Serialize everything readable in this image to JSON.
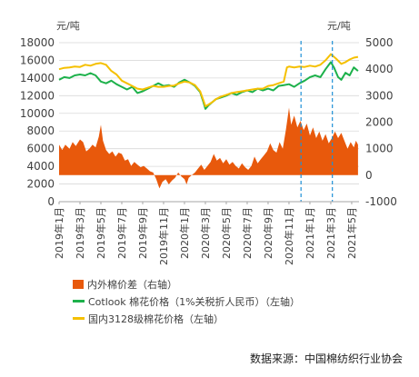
{
  "chart_data": {
    "type": "bar+line",
    "left_axis_unit": "元/吨",
    "right_axis_unit": "元/吨",
    "left_ylim": [
      0,
      18000
    ],
    "right_ylim": [
      -1000,
      5000
    ],
    "left_ticks": [
      "0",
      "2000",
      "4000",
      "6000",
      "8000",
      "10000",
      "12000",
      "14000",
      "16000",
      "18000"
    ],
    "right_ticks": [
      "-1000",
      "0",
      "1000",
      "2000",
      "3000",
      "4000",
      "5000"
    ],
    "x_labels": [
      "2019年1月",
      "2019年3月",
      "2019年5月",
      "2019年7月",
      "2019年9月",
      "2019年11月",
      "2020年1月",
      "2020年3月",
      "2020年5月",
      "2020年7月",
      "2020年9月",
      "2020年11月",
      "2021年1月",
      "2021年3月",
      "2021年5月"
    ],
    "x_months": [
      0,
      2,
      4,
      6,
      8,
      10,
      12,
      14,
      16,
      18,
      20,
      22,
      24,
      26,
      28
    ],
    "x_range_months": [
      0,
      28.7
    ],
    "reference_lines_months": [
      23.15,
      26.15
    ],
    "series": [
      {
        "name": "内外棉价差（右轴）",
        "type": "area",
        "axis": "right",
        "color": "#E8590C",
        "points": [
          [
            0,
            1150
          ],
          [
            0.3,
            950
          ],
          [
            0.6,
            1150
          ],
          [
            1,
            1000
          ],
          [
            1.3,
            1250
          ],
          [
            1.6,
            1100
          ],
          [
            2,
            1350
          ],
          [
            2.3,
            1250
          ],
          [
            2.6,
            900
          ],
          [
            2.9,
            1000
          ],
          [
            3.2,
            1150
          ],
          [
            3.5,
            1050
          ],
          [
            3.8,
            1450
          ],
          [
            4,
            1900
          ],
          [
            4.2,
            1300
          ],
          [
            4.5,
            950
          ],
          [
            4.8,
            800
          ],
          [
            5.1,
            900
          ],
          [
            5.4,
            700
          ],
          [
            5.7,
            850
          ],
          [
            6,
            800
          ],
          [
            6.3,
            550
          ],
          [
            6.6,
            600
          ],
          [
            6.9,
            350
          ],
          [
            7.2,
            500
          ],
          [
            7.5,
            400
          ],
          [
            7.8,
            300
          ],
          [
            8.1,
            350
          ],
          [
            8.4,
            250
          ],
          [
            8.7,
            150
          ],
          [
            9,
            100
          ],
          [
            9.3,
            -150
          ],
          [
            9.6,
            -500
          ],
          [
            9.9,
            -250
          ],
          [
            10.2,
            -150
          ],
          [
            10.5,
            -350
          ],
          [
            10.8,
            -200
          ],
          [
            11.1,
            -100
          ],
          [
            11.4,
            100
          ],
          [
            11.7,
            -50
          ],
          [
            12,
            -150
          ],
          [
            12.2,
            -350
          ],
          [
            12.4,
            -100
          ],
          [
            12.7,
            0
          ],
          [
            13,
            100
          ],
          [
            13.3,
            250
          ],
          [
            13.6,
            400
          ],
          [
            13.9,
            200
          ],
          [
            14.2,
            350
          ],
          [
            14.5,
            500
          ],
          [
            14.8,
            800
          ],
          [
            15.1,
            550
          ],
          [
            15.4,
            650
          ],
          [
            15.7,
            450
          ],
          [
            16,
            600
          ],
          [
            16.3,
            400
          ],
          [
            16.6,
            500
          ],
          [
            16.9,
            350
          ],
          [
            17.2,
            250
          ],
          [
            17.5,
            450
          ],
          [
            17.8,
            300
          ],
          [
            18.1,
            200
          ],
          [
            18.4,
            350
          ],
          [
            18.7,
            700
          ],
          [
            19,
            450
          ],
          [
            19.3,
            600
          ],
          [
            19.6,
            750
          ],
          [
            19.9,
            900
          ],
          [
            20.2,
            1200
          ],
          [
            20.5,
            950
          ],
          [
            20.8,
            850
          ],
          [
            21.1,
            1250
          ],
          [
            21.4,
            1000
          ],
          [
            21.7,
            1700
          ],
          [
            22,
            2550
          ],
          [
            22.2,
            1900
          ],
          [
            22.5,
            2250
          ],
          [
            22.8,
            1800
          ],
          [
            23.1,
            2050
          ],
          [
            23.4,
            1700
          ],
          [
            23.7,
            1950
          ],
          [
            24,
            1500
          ],
          [
            24.3,
            1800
          ],
          [
            24.6,
            1400
          ],
          [
            24.9,
            1650
          ],
          [
            25.2,
            1300
          ],
          [
            25.5,
            1550
          ],
          [
            25.8,
            1200
          ],
          [
            26.1,
            1400
          ],
          [
            26.4,
            1650
          ],
          [
            26.7,
            1400
          ],
          [
            27,
            1600
          ],
          [
            27.3,
            1300
          ],
          [
            27.6,
            1000
          ],
          [
            27.9,
            1250
          ],
          [
            28.2,
            1050
          ],
          [
            28.4,
            1300
          ],
          [
            28.6,
            1150
          ]
        ]
      },
      {
        "name": "Cotlook 棉花价格（1%关税折人民币）（左轴）",
        "type": "line",
        "axis": "left",
        "color": "#1DB14B",
        "points": [
          [
            0,
            13800
          ],
          [
            0.5,
            14100
          ],
          [
            1,
            14000
          ],
          [
            1.5,
            14300
          ],
          [
            2,
            14400
          ],
          [
            2.5,
            14300
          ],
          [
            3,
            14550
          ],
          [
            3.5,
            14300
          ],
          [
            4,
            13600
          ],
          [
            4.5,
            13400
          ],
          [
            5,
            13700
          ],
          [
            5.5,
            13300
          ],
          [
            6,
            13000
          ],
          [
            6.5,
            12700
          ],
          [
            7,
            13000
          ],
          [
            7.5,
            12300
          ],
          [
            8,
            12500
          ],
          [
            8.5,
            12800
          ],
          [
            9,
            13100
          ],
          [
            9.5,
            13400
          ],
          [
            10,
            13100
          ],
          [
            10.5,
            13200
          ],
          [
            11,
            13000
          ],
          [
            11.5,
            13500
          ],
          [
            12,
            13800
          ],
          [
            12.5,
            13500
          ],
          [
            13,
            13100
          ],
          [
            13.5,
            12400
          ],
          [
            13.8,
            11300
          ],
          [
            14,
            10500
          ],
          [
            14.3,
            10900
          ],
          [
            14.7,
            11300
          ],
          [
            15,
            11600
          ],
          [
            15.5,
            11800
          ],
          [
            16,
            12000
          ],
          [
            16.5,
            12300
          ],
          [
            17,
            12100
          ],
          [
            17.5,
            12400
          ],
          [
            18,
            12600
          ],
          [
            18.5,
            12400
          ],
          [
            19,
            12800
          ],
          [
            19.5,
            12600
          ],
          [
            20,
            12800
          ],
          [
            20.5,
            12600
          ],
          [
            21,
            13100
          ],
          [
            21.5,
            13200
          ],
          [
            22,
            13300
          ],
          [
            22.5,
            13000
          ],
          [
            23,
            13400
          ],
          [
            23.5,
            13700
          ],
          [
            24,
            14100
          ],
          [
            24.5,
            14300
          ],
          [
            25,
            14100
          ],
          [
            25.5,
            15000
          ],
          [
            26,
            15800
          ],
          [
            26.3,
            15200
          ],
          [
            26.7,
            14100
          ],
          [
            27,
            13800
          ],
          [
            27.4,
            14600
          ],
          [
            27.8,
            14300
          ],
          [
            28.2,
            15200
          ],
          [
            28.6,
            14800
          ]
        ]
      },
      {
        "name": "国内3128级棉花价格（左轴）",
        "type": "line",
        "axis": "left",
        "color": "#F5C000",
        "points": [
          [
            0,
            15000
          ],
          [
            0.5,
            15150
          ],
          [
            1,
            15200
          ],
          [
            1.5,
            15300
          ],
          [
            2,
            15250
          ],
          [
            2.5,
            15500
          ],
          [
            3,
            15400
          ],
          [
            3.5,
            15600
          ],
          [
            4,
            15700
          ],
          [
            4.5,
            15500
          ],
          [
            5,
            14800
          ],
          [
            5.5,
            14400
          ],
          [
            6,
            13700
          ],
          [
            6.5,
            13400
          ],
          [
            7,
            13100
          ],
          [
            7.5,
            12800
          ],
          [
            8,
            12700
          ],
          [
            8.5,
            12900
          ],
          [
            9,
            13100
          ],
          [
            9.5,
            13000
          ],
          [
            10,
            13000
          ],
          [
            10.5,
            13100
          ],
          [
            11,
            13150
          ],
          [
            11.5,
            13400
          ],
          [
            12,
            13600
          ],
          [
            12.5,
            13500
          ],
          [
            13,
            13200
          ],
          [
            13.5,
            12500
          ],
          [
            13.8,
            11500
          ],
          [
            14,
            10800
          ],
          [
            14.3,
            11000
          ],
          [
            14.7,
            11300
          ],
          [
            15,
            11600
          ],
          [
            15.5,
            11900
          ],
          [
            16,
            12100
          ],
          [
            16.5,
            12300
          ],
          [
            17,
            12400
          ],
          [
            17.5,
            12500
          ],
          [
            18,
            12600
          ],
          [
            18.5,
            12700
          ],
          [
            19,
            12800
          ],
          [
            19.5,
            12800
          ],
          [
            20,
            13100
          ],
          [
            20.5,
            13200
          ],
          [
            21,
            13400
          ],
          [
            21.5,
            13600
          ],
          [
            21.8,
            15200
          ],
          [
            22,
            15300
          ],
          [
            22.5,
            15200
          ],
          [
            23,
            15300
          ],
          [
            23.5,
            15250
          ],
          [
            24,
            15400
          ],
          [
            24.5,
            15300
          ],
          [
            25,
            15500
          ],
          [
            25.5,
            16000
          ],
          [
            26,
            16700
          ],
          [
            26.5,
            16200
          ],
          [
            27,
            15600
          ],
          [
            27.4,
            15800
          ],
          [
            27.8,
            16100
          ],
          [
            28.2,
            16300
          ],
          [
            28.6,
            16400
          ]
        ]
      }
    ],
    "legend": [
      {
        "label": "内外棉价差（右轴）",
        "color": "#E8590C",
        "kind": "box"
      },
      {
        "label": "Cotlook 棉花价格（1%关税折人民币）（左轴）",
        "color": "#1DB14B",
        "kind": "line"
      },
      {
        "label": "国内3128级棉花价格（左轴）",
        "color": "#F5C000",
        "kind": "line"
      }
    ],
    "reference_line_color": "#1E90D6"
  },
  "source_text": "数据来源：中国棉纺织行业协会"
}
